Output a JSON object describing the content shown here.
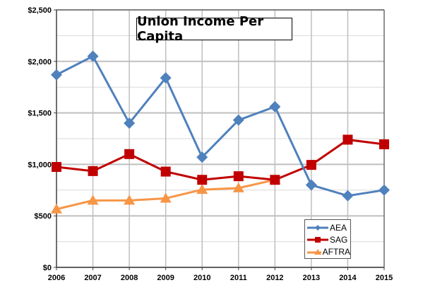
{
  "chart_data": {
    "type": "line",
    "title": "Union Income Per Capita",
    "xlabel": "",
    "ylabel": "",
    "categories": [
      "2006",
      "2007",
      "2008",
      "2009",
      "2010",
      "2011",
      "2012",
      "2013",
      "2014",
      "2015"
    ],
    "ylim": [
      0,
      2500
    ],
    "yticks": [
      "$0",
      "$500",
      "$1,000",
      "$1,500",
      "$2,000",
      "$2,500"
    ],
    "ytick_values": [
      0,
      500,
      1000,
      1500,
      2000,
      2500
    ],
    "grid": true,
    "legend_position": "lower right inside",
    "series": [
      {
        "name": "AEA",
        "color": "#4F81BD",
        "marker": "diamond",
        "values": [
          1870,
          2050,
          1400,
          1840,
          1070,
          1430,
          1560,
          800,
          695,
          750
        ]
      },
      {
        "name": "SAG",
        "color": "#C00000",
        "marker": "square",
        "values": [
          975,
          935,
          1100,
          930,
          850,
          885,
          850,
          995,
          1240,
          1195
        ]
      },
      {
        "name": "AFTRA",
        "color": "#F79646",
        "marker": "triangle",
        "values": [
          565,
          650,
          650,
          670,
          755,
          770,
          850,
          null,
          null,
          null
        ]
      }
    ]
  },
  "legend": {
    "items": [
      {
        "label": "AEA",
        "color": "#4F81BD"
      },
      {
        "label": "SAG",
        "color": "#C00000"
      },
      {
        "label": "AFTRA",
        "color": "#F79646"
      }
    ]
  }
}
